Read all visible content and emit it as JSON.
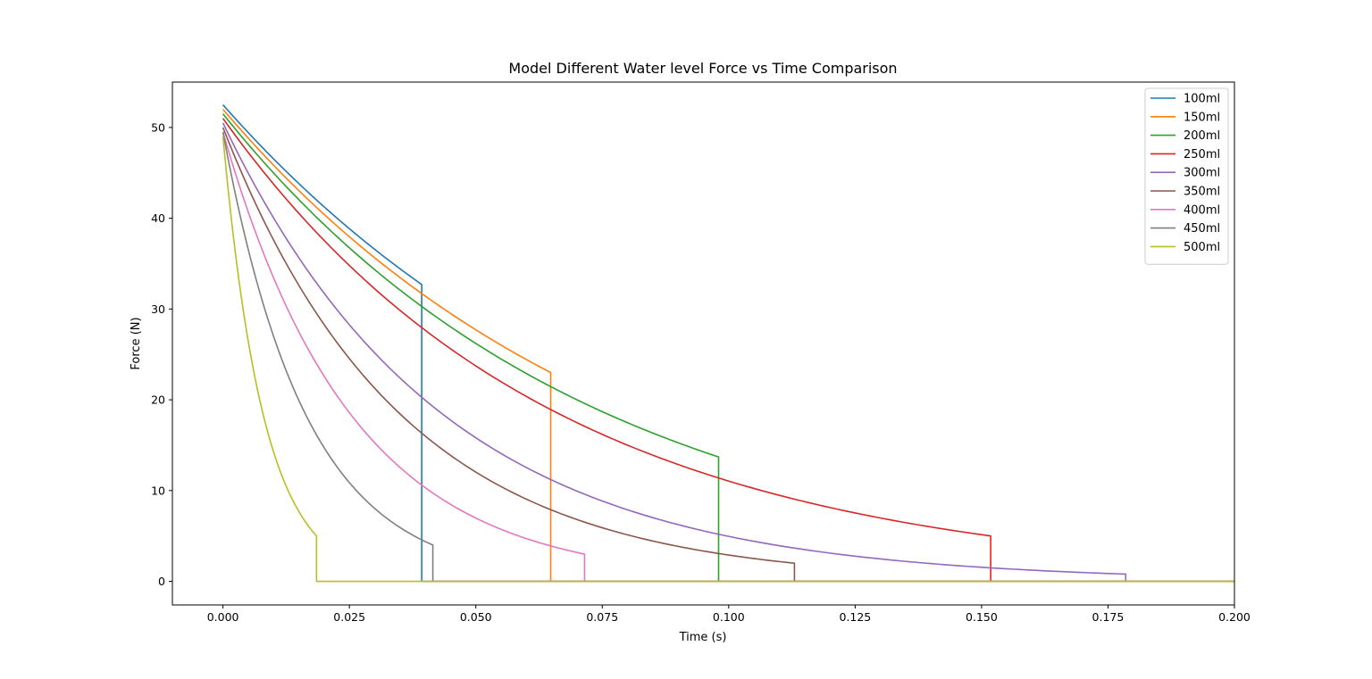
{
  "chart_data": {
    "type": "line",
    "title": "Model Different Water level Force vs Time Comparison",
    "xlabel": "Time (s)",
    "ylabel": "Force (N)",
    "xlim": [
      -0.01,
      0.2
    ],
    "ylim": [
      -2.6,
      55.0
    ],
    "xticks": [
      0.0,
      0.025,
      0.05,
      0.075,
      0.1,
      0.125,
      0.15,
      0.175,
      0.2
    ],
    "xtick_labels": [
      "0.000",
      "0.025",
      "0.050",
      "0.075",
      "0.100",
      "0.125",
      "0.150",
      "0.175",
      "0.200"
    ],
    "yticks": [
      0,
      10,
      20,
      30,
      40,
      50
    ],
    "ytick_labels": [
      "0",
      "10",
      "20",
      "30",
      "40",
      "50"
    ],
    "grid": false,
    "legend_position": "top-right",
    "x_end": 0.2,
    "series": [
      {
        "name": "100ml",
        "color": "#1f77b4",
        "start": 52.5,
        "end_time": 0.0393,
        "end_value": 32.7
      },
      {
        "name": "150ml",
        "color": "#ff7f0e",
        "start": 52.0,
        "end_time": 0.0648,
        "end_value": 23.0
      },
      {
        "name": "200ml",
        "color": "#2ca02c",
        "start": 51.5,
        "end_time": 0.098,
        "end_value": 13.7
      },
      {
        "name": "250ml",
        "color": "#d62728",
        "start": 51.0,
        "end_time": 0.1518,
        "end_value": 5.0
      },
      {
        "name": "300ml",
        "color": "#9467bd",
        "start": 50.5,
        "end_time": 0.1785,
        "end_value": 0.8
      },
      {
        "name": "350ml",
        "color": "#8c564b",
        "start": 50.0,
        "end_time": 0.113,
        "end_value": 2.0
      },
      {
        "name": "400ml",
        "color": "#e377c2",
        "start": 49.5,
        "end_time": 0.0715,
        "end_value": 3.0
      },
      {
        "name": "450ml",
        "color": "#7f7f7f",
        "start": 49.5,
        "end_time": 0.0415,
        "end_value": 4.0
      },
      {
        "name": "500ml",
        "color": "#bcbd22",
        "start": 49.0,
        "end_time": 0.0185,
        "end_value": 5.0
      }
    ]
  }
}
